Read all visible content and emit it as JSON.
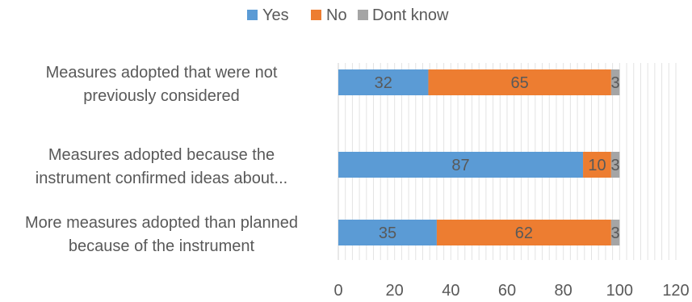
{
  "chart_data": {
    "type": "bar",
    "orientation": "horizontal",
    "stacked": true,
    "categories": [
      [
        "Measures adopted that were not",
        "previously considered"
      ],
      [
        "Measures adopted because the",
        "instrument confirmed ideas about..."
      ],
      [
        "More measures  adopted than planned",
        "because of the instrument"
      ]
    ],
    "series": [
      {
        "name": "Yes",
        "color": "#5B9BD5",
        "values": [
          32,
          87,
          35
        ]
      },
      {
        "name": "No",
        "color": "#ED7D31",
        "values": [
          65,
          10,
          62
        ]
      },
      {
        "name": "Dont know",
        "color": "#A5A5A5",
        "values": [
          3,
          3,
          3
        ]
      }
    ],
    "xlim": [
      0,
      120
    ],
    "xticks": [
      "0",
      "20",
      "40",
      "60",
      "80",
      "100",
      "120"
    ],
    "grid": true,
    "legend": "top",
    "data_labels": true
  }
}
